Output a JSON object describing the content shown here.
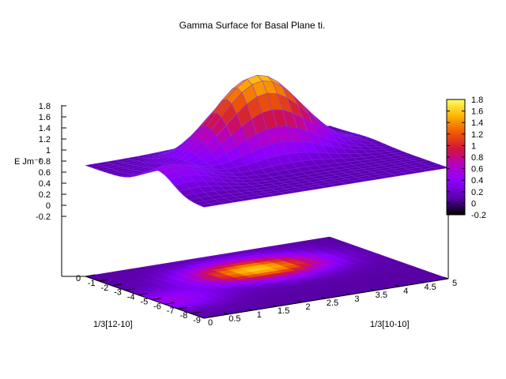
{
  "chart_data": {
    "type": "surface",
    "title": "Gamma Surface for Basal Plane ti.",
    "xlabel": "1/3[10-10]",
    "ylabel": "1/3[12-10]",
    "zlabel": "E Jm⁻²",
    "x_ticks": [
      "0",
      "0.5",
      "1",
      "1.5",
      "2",
      "2.5",
      "3",
      "3.5",
      "4",
      "4.5",
      "5"
    ],
    "y_ticks": [
      "-9",
      "-8",
      "-7",
      "-6",
      "-5",
      "-4",
      "-3",
      "-2",
      "-1",
      "0"
    ],
    "z_ticks": [
      "-0.2",
      "0",
      "0.2",
      "0.4",
      "0.6",
      "0.8",
      "1",
      "1.2",
      "1.4",
      "1.6",
      "1.8"
    ],
    "xlim": [
      0,
      5
    ],
    "ylim": [
      -9,
      0
    ],
    "zlim": [
      -0.2,
      1.8
    ],
    "colorbar": {
      "ticks": [
        "-0.2",
        "0",
        "0.2",
        "0.4",
        "0.6",
        "0.8",
        "1",
        "1.2",
        "1.4",
        "1.6",
        "1.8"
      ],
      "range": [
        -0.2,
        1.8
      ],
      "colors": [
        "#000000",
        "#5a00a8",
        "#8a00ff",
        "#b400c8",
        "#d2143c",
        "#ee5a00",
        "#ffb400",
        "#ffff60"
      ]
    },
    "features": {
      "peak": {
        "x": 2.7,
        "y": -3.0,
        "z": 1.6
      },
      "secondary_peak": {
        "x": 0.3,
        "y": -5.5,
        "z": 0.5
      },
      "baseline": 0.08
    },
    "grid": false,
    "projection": "map_below"
  }
}
